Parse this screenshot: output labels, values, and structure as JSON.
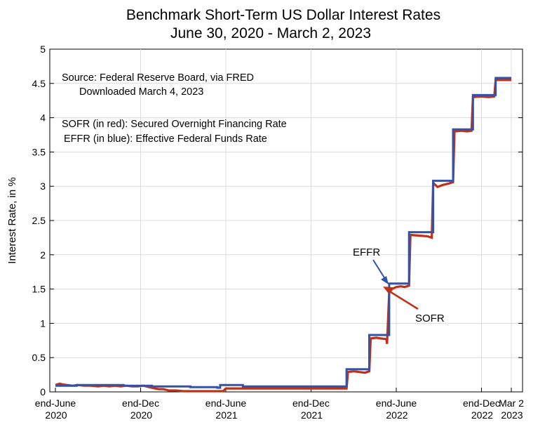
{
  "chart_data": {
    "type": "line",
    "title": "Benchmark Short-Term US Dollar Interest Rates",
    "subtitle": "June 30, 2020 - March 2, 2023",
    "xlabel": "",
    "ylabel": "Interest Rate, in %",
    "xlim": [
      0,
      32.1
    ],
    "ylim": [
      0,
      5
    ],
    "y_ticks": [
      0,
      0.5,
      1,
      1.5,
      2,
      2.5,
      3,
      3.5,
      4,
      4.5,
      5
    ],
    "x_ticks": [
      {
        "value": 0,
        "line1": "end-June",
        "line2": "2020"
      },
      {
        "value": 6,
        "line1": "end-Dec",
        "line2": "2020"
      },
      {
        "value": 12,
        "line1": "end-June",
        "line2": "2021"
      },
      {
        "value": 18,
        "line1": "end-Dec",
        "line2": "2021"
      },
      {
        "value": 24,
        "line1": "end-June",
        "line2": "2022"
      },
      {
        "value": 30,
        "line1": "end-Dec",
        "line2": "2022"
      },
      {
        "value": 32.1,
        "line1": "Mar 2",
        "line2": "2023"
      }
    ],
    "x_units": "months since June 30, 2020",
    "grid": true,
    "annotations": {
      "source_line1": "Source:  Federal Reserve Board, via FRED",
      "source_line2": "Downloaded March 4, 2023",
      "sofr_note": "SOFR (in red):  Secured Overnight Financing Rate",
      "effr_note": "EFFR (in blue):  Effective Federal Funds Rate",
      "effr_label": "EFFR",
      "sofr_label": "SOFR"
    },
    "series": [
      {
        "name": "EFFR",
        "color": "#3652a6",
        "points": [
          [
            0,
            0.09
          ],
          [
            1.5,
            0.09
          ],
          [
            1.5,
            0.1
          ],
          [
            4.8,
            0.1
          ],
          [
            4.8,
            0.09
          ],
          [
            6.8,
            0.09
          ],
          [
            6.8,
            0.08
          ],
          [
            9.5,
            0.08
          ],
          [
            9.5,
            0.07
          ],
          [
            11.4,
            0.07
          ],
          [
            11.4,
            0.06
          ],
          [
            11.6,
            0.06
          ],
          [
            11.6,
            0.1
          ],
          [
            13.2,
            0.1
          ],
          [
            13.2,
            0.08
          ],
          [
            20.5,
            0.08
          ],
          [
            20.5,
            0.33
          ],
          [
            22.1,
            0.33
          ],
          [
            22.1,
            0.83
          ],
          [
            23.5,
            0.83
          ],
          [
            23.5,
            1.58
          ],
          [
            24.9,
            1.58
          ],
          [
            24.9,
            2.33
          ],
          [
            26.6,
            2.33
          ],
          [
            26.6,
            3.08
          ],
          [
            28.0,
            3.08
          ],
          [
            28.0,
            3.83
          ],
          [
            29.4,
            3.83
          ],
          [
            29.4,
            4.33
          ],
          [
            31.0,
            4.33
          ],
          [
            31.0,
            4.58
          ],
          [
            32.1,
            4.58
          ]
        ]
      },
      {
        "name": "SOFR",
        "color": "#c0311a",
        "points": [
          [
            0,
            0.1
          ],
          [
            0.3,
            0.12
          ],
          [
            0.5,
            0.11
          ],
          [
            0.8,
            0.1
          ],
          [
            1.2,
            0.09
          ],
          [
            1.6,
            0.1
          ],
          [
            2.0,
            0.09
          ],
          [
            2.5,
            0.09
          ],
          [
            3.0,
            0.08
          ],
          [
            3.4,
            0.09
          ],
          [
            3.8,
            0.08
          ],
          [
            4.2,
            0.09
          ],
          [
            4.6,
            0.08
          ],
          [
            5.0,
            0.09
          ],
          [
            5.4,
            0.08
          ],
          [
            5.8,
            0.08
          ],
          [
            6.2,
            0.09
          ],
          [
            6.6,
            0.07
          ],
          [
            7.0,
            0.05
          ],
          [
            7.3,
            0.04
          ],
          [
            7.6,
            0.04
          ],
          [
            8.0,
            0.02
          ],
          [
            8.5,
            0.02
          ],
          [
            9.0,
            0.01
          ],
          [
            9.5,
            0.01
          ],
          [
            11.8,
            0.01
          ],
          [
            12.0,
            0.05
          ],
          [
            13.0,
            0.05
          ],
          [
            15.0,
            0.05
          ],
          [
            18.0,
            0.05
          ],
          [
            20.5,
            0.05
          ],
          [
            20.6,
            0.29
          ],
          [
            21.0,
            0.3
          ],
          [
            21.4,
            0.29
          ],
          [
            21.8,
            0.28
          ],
          [
            22.1,
            0.3
          ],
          [
            22.2,
            0.78
          ],
          [
            22.6,
            0.79
          ],
          [
            22.9,
            0.78
          ],
          [
            23.3,
            0.77
          ],
          [
            23.35,
            0.7
          ],
          [
            23.5,
            1.45
          ],
          [
            23.7,
            1.5
          ],
          [
            24.0,
            1.53
          ],
          [
            24.3,
            1.54
          ],
          [
            24.6,
            1.53
          ],
          [
            24.9,
            1.55
          ],
          [
            25.0,
            2.29
          ],
          [
            25.6,
            2.28
          ],
          [
            26.2,
            2.27
          ],
          [
            26.5,
            2.25
          ],
          [
            26.6,
            3.05
          ],
          [
            26.9,
            2.99
          ],
          [
            27.3,
            3.02
          ],
          [
            27.7,
            3.04
          ],
          [
            28.0,
            3.06
          ],
          [
            28.1,
            3.8
          ],
          [
            28.6,
            3.81
          ],
          [
            29.0,
            3.8
          ],
          [
            29.3,
            3.81
          ],
          [
            29.4,
            4.3
          ],
          [
            30.0,
            4.31
          ],
          [
            30.5,
            4.3
          ],
          [
            30.9,
            4.31
          ],
          [
            31.0,
            4.55
          ],
          [
            31.5,
            4.55
          ],
          [
            32.1,
            4.55
          ]
        ]
      }
    ]
  }
}
